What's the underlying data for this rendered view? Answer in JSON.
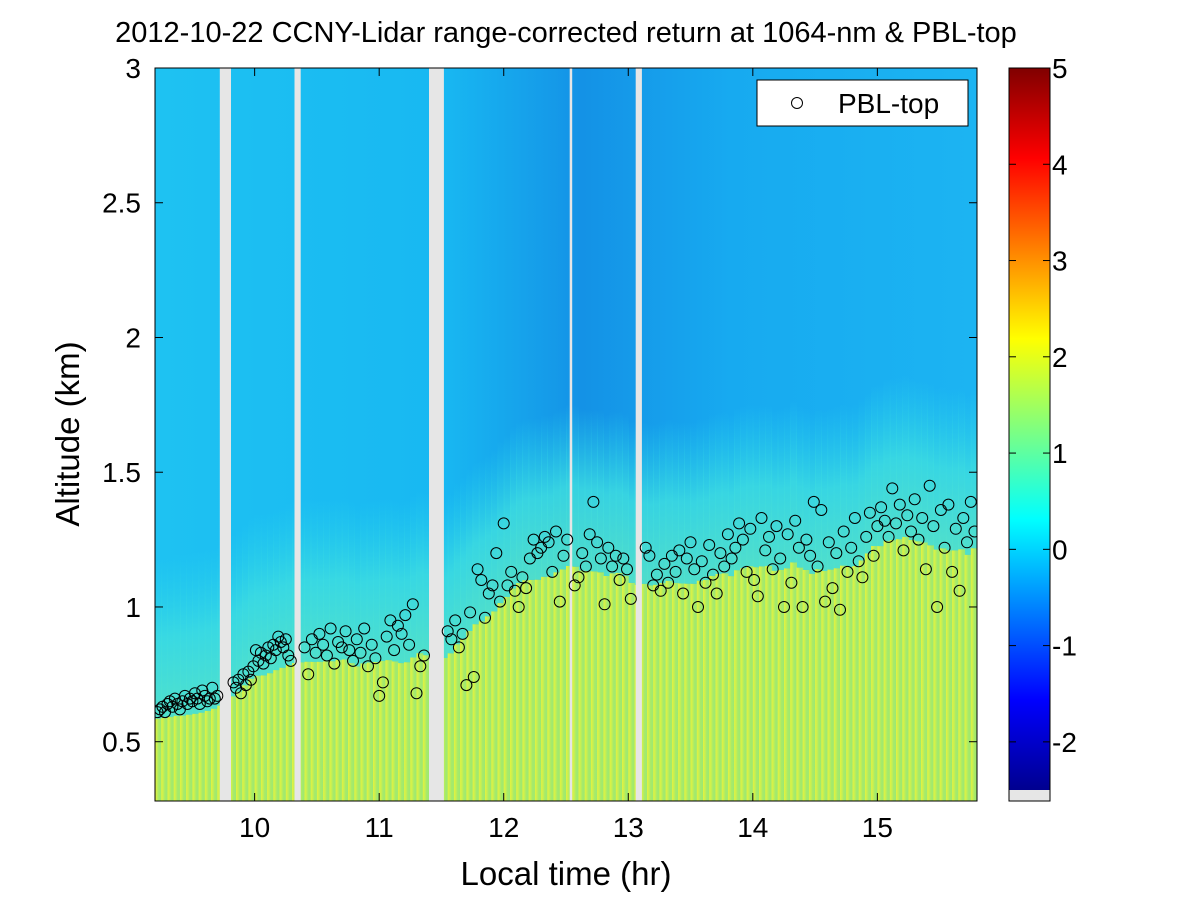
{
  "chart_data": {
    "type": "heatmap",
    "title": "2012-10-22 CCNY-Lidar range-corrected return at 1064-nm & PBL-top",
    "xlabel": "Local time (hr)",
    "ylabel": "Altitude (km)",
    "xlim": [
      9.2,
      15.8
    ],
    "ylim": [
      0.28,
      3.0
    ],
    "xticks": [
      10,
      11,
      12,
      13,
      14,
      15
    ],
    "yticks": [
      0.5,
      1,
      1.5,
      2,
      2.5,
      3
    ],
    "xtick_labels": [
      "10",
      "11",
      "12",
      "13",
      "14",
      "15"
    ],
    "ytick_labels": [
      "0.5",
      "1",
      "1.5",
      "2",
      "2.5",
      "3"
    ],
    "colorbar": {
      "range": [
        -2.5,
        5
      ],
      "ticks": [
        -2,
        -1,
        0,
        1,
        2,
        3,
        4,
        5
      ],
      "tick_labels": [
        "-2",
        "-1",
        "0",
        "1",
        "2",
        "3",
        "4",
        "5"
      ],
      "colormap": "jet"
    },
    "data_gaps": [
      [
        9.72,
        9.81
      ],
      [
        10.32,
        10.37
      ],
      [
        11.4,
        11.52
      ],
      [
        12.53,
        12.55
      ],
      [
        13.06,
        13.11
      ]
    ],
    "field_description": {
      "boundary_layer_value": 1.6,
      "free_troposphere_value_early": 0.1,
      "free_troposphere_value_midday": -0.6,
      "note": "range-corrected return; high (green/yellow) inside boundary layer, low (cyan/blue) aloft"
    },
    "legend": {
      "label": "PBL-top",
      "placement": "top-right",
      "marker": "open-circle"
    },
    "series": [
      {
        "name": "PBL-top",
        "x": [
          9.22,
          9.24,
          9.26,
          9.28,
          9.3,
          9.32,
          9.34,
          9.36,
          9.38,
          9.4,
          9.42,
          9.44,
          9.46,
          9.48,
          9.5,
          9.52,
          9.54,
          9.56,
          9.58,
          9.6,
          9.62,
          9.64,
          9.66,
          9.68,
          9.7,
          9.83,
          9.85,
          9.87,
          9.89,
          9.91,
          9.93,
          9.95,
          9.97,
          9.99,
          10.01,
          10.03,
          10.05,
          10.07,
          10.09,
          10.11,
          10.13,
          10.15,
          10.17,
          10.19,
          10.21,
          10.23,
          10.25,
          10.27,
          10.29,
          10.4,
          10.43,
          10.46,
          10.49,
          10.52,
          10.55,
          10.58,
          10.61,
          10.64,
          10.67,
          10.7,
          10.73,
          10.76,
          10.79,
          10.82,
          10.85,
          10.88,
          10.91,
          10.94,
          10.97,
          11.0,
          11.03,
          11.06,
          11.09,
          11.12,
          11.15,
          11.18,
          11.21,
          11.24,
          11.27,
          11.3,
          11.33,
          11.36,
          11.55,
          11.58,
          11.61,
          11.64,
          11.67,
          11.7,
          11.73,
          11.76,
          11.79,
          11.82,
          11.85,
          11.88,
          11.91,
          11.94,
          11.97,
          12.0,
          12.03,
          12.06,
          12.09,
          12.12,
          12.15,
          12.18,
          12.21,
          12.24,
          12.27,
          12.3,
          12.33,
          12.36,
          12.39,
          12.42,
          12.45,
          12.48,
          12.51,
          12.57,
          12.6,
          12.63,
          12.66,
          12.69,
          12.72,
          12.75,
          12.78,
          12.81,
          12.84,
          12.87,
          12.9,
          12.93,
          12.96,
          12.99,
          13.02,
          13.14,
          13.17,
          13.2,
          13.23,
          13.26,
          13.29,
          13.32,
          13.35,
          13.38,
          13.41,
          13.44,
          13.47,
          13.5,
          13.53,
          13.56,
          13.59,
          13.62,
          13.65,
          13.68,
          13.71,
          13.74,
          13.77,
          13.8,
          13.83,
          13.86,
          13.89,
          13.92,
          13.95,
          13.98,
          14.01,
          14.04,
          14.07,
          14.1,
          14.13,
          14.16,
          14.19,
          14.22,
          14.25,
          14.28,
          14.31,
          14.34,
          14.37,
          14.4,
          14.43,
          14.46,
          14.49,
          14.52,
          14.55,
          14.58,
          14.61,
          14.64,
          14.67,
          14.7,
          14.73,
          14.76,
          14.79,
          14.82,
          14.85,
          14.88,
          14.91,
          14.94,
          14.97,
          15.0,
          15.03,
          15.06,
          15.09,
          15.12,
          15.15,
          15.18,
          15.21,
          15.24,
          15.27,
          15.3,
          15.33,
          15.36,
          15.39,
          15.42,
          15.45,
          15.48,
          15.51,
          15.54,
          15.57,
          15.6,
          15.63,
          15.66,
          15.69,
          15.72,
          15.75,
          15.78
        ],
        "y": [
          0.61,
          0.62,
          0.63,
          0.61,
          0.64,
          0.65,
          0.63,
          0.66,
          0.64,
          0.62,
          0.65,
          0.67,
          0.64,
          0.66,
          0.65,
          0.68,
          0.66,
          0.64,
          0.69,
          0.67,
          0.65,
          0.66,
          0.7,
          0.66,
          0.67,
          0.72,
          0.7,
          0.73,
          0.68,
          0.75,
          0.71,
          0.76,
          0.73,
          0.78,
          0.84,
          0.8,
          0.83,
          0.79,
          0.82,
          0.85,
          0.81,
          0.86,
          0.84,
          0.89,
          0.87,
          0.85,
          0.88,
          0.82,
          0.8,
          0.85,
          0.75,
          0.88,
          0.83,
          0.9,
          0.86,
          0.82,
          0.92,
          0.79,
          0.87,
          0.85,
          0.91,
          0.84,
          0.8,
          0.88,
          0.83,
          0.92,
          0.78,
          0.86,
          0.81,
          0.67,
          0.72,
          0.89,
          0.95,
          0.84,
          0.93,
          0.9,
          0.97,
          0.86,
          1.01,
          0.68,
          0.78,
          0.82,
          0.91,
          0.88,
          0.95,
          0.85,
          0.9,
          0.71,
          0.98,
          0.74,
          1.14,
          1.1,
          0.96,
          1.05,
          1.08,
          1.2,
          1.02,
          1.31,
          1.08,
          1.13,
          1.06,
          1.0,
          1.11,
          1.07,
          1.18,
          1.25,
          1.2,
          1.22,
          1.26,
          1.24,
          1.13,
          1.28,
          1.02,
          1.19,
          1.25,
          1.08,
          1.11,
          1.2,
          1.15,
          1.27,
          1.39,
          1.24,
          1.18,
          1.01,
          1.22,
          1.15,
          1.19,
          1.1,
          1.18,
          1.14,
          1.03,
          1.22,
          1.19,
          1.08,
          1.12,
          1.06,
          1.16,
          1.09,
          1.19,
          1.13,
          1.21,
          1.05,
          1.18,
          1.24,
          1.14,
          1.0,
          1.17,
          1.09,
          1.23,
          1.12,
          1.05,
          1.2,
          1.15,
          1.27,
          1.18,
          1.22,
          1.31,
          1.25,
          1.13,
          1.29,
          1.1,
          1.04,
          1.33,
          1.21,
          1.26,
          1.14,
          1.3,
          1.18,
          1.0,
          1.27,
          1.09,
          1.32,
          1.22,
          1.0,
          1.25,
          1.19,
          1.39,
          1.15,
          1.36,
          1.02,
          1.24,
          1.07,
          1.2,
          0.99,
          1.28,
          1.13,
          1.22,
          1.33,
          1.17,
          1.11,
          1.26,
          1.35,
          1.19,
          1.3,
          1.37,
          1.32,
          1.26,
          1.44,
          1.31,
          1.38,
          1.21,
          1.34,
          1.28,
          1.4,
          1.25,
          1.33,
          1.14,
          1.45,
          1.3,
          1.0,
          1.36,
          1.22,
          1.38,
          1.13,
          1.29,
          1.06,
          1.33,
          1.24,
          1.39,
          1.28
        ]
      }
    ]
  }
}
